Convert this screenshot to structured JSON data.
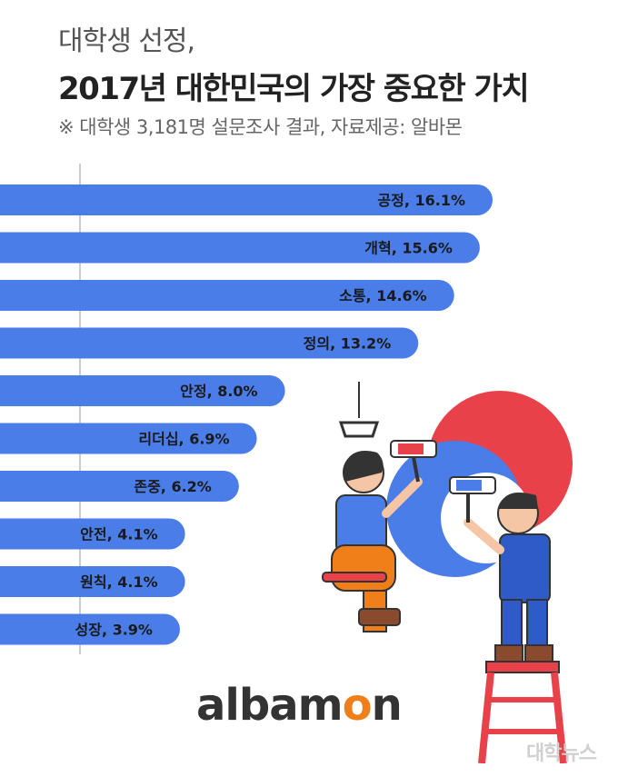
{
  "header": {
    "title_line1": "대학생 선정,",
    "title_line2": "2017년 대한민국의 가장 중요한 가치",
    "subtitle": "※ 대학생 3,181명 설문조사 결과,  자료제공: 알바몬"
  },
  "chart_data": {
    "type": "bar",
    "orientation": "horizontal",
    "categories": [
      "공정",
      "개혁",
      "소통",
      "정의",
      "안정",
      "리더십",
      "존중",
      "안전",
      "원칙",
      "성장"
    ],
    "values": [
      16.1,
      15.6,
      14.6,
      13.2,
      8.0,
      6.9,
      6.2,
      4.1,
      4.1,
      3.9
    ],
    "unit": "%",
    "bar_color": "#4a7de8",
    "title": "",
    "xlabel": "",
    "ylabel": "",
    "grid": false,
    "legend": "none"
  },
  "logo": {
    "prefix": "albam",
    "o": "o",
    "suffix": "n"
  },
  "watermark": "대학뉴스",
  "colors": {
    "accent_red": "#e8414a",
    "accent_blue": "#4a7de8",
    "accent_orange": "#f07f1a"
  },
  "illustration": {
    "description_icons": [
      "painter-woman-icon",
      "painter-man-icon",
      "paint-roller-icon",
      "ladder-icon"
    ]
  }
}
